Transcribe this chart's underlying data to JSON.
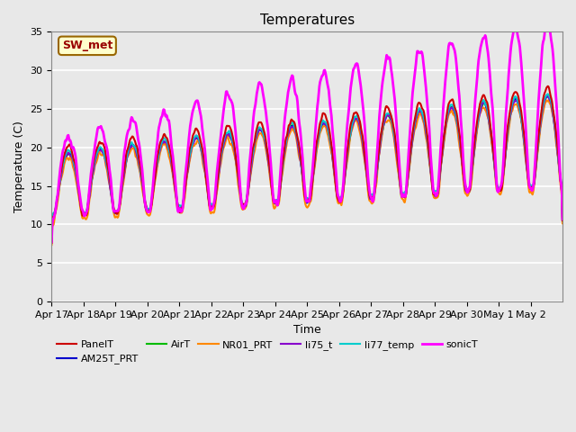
{
  "title": "Temperatures",
  "xlabel": "Time",
  "ylabel": "Temperature (C)",
  "ylim": [
    0,
    35
  ],
  "yticks": [
    0,
    5,
    10,
    15,
    20,
    25,
    30,
    35
  ],
  "n_days": 16,
  "xtick_labels": [
    "Apr 17",
    "Apr 18",
    "Apr 19",
    "Apr 20",
    "Apr 21",
    "Apr 22",
    "Apr 23",
    "Apr 24",
    "Apr 25",
    "Apr 26",
    "Apr 27",
    "Apr 28",
    "Apr 29",
    "Apr 30",
    "May 1",
    "May 2"
  ],
  "annotation_text": "SW_met",
  "annotation_bg": "#FFFFCC",
  "annotation_border": "#996600",
  "annotation_text_color": "#990000",
  "series": {
    "PanelT": {
      "color": "#CC0000",
      "lw": 1.5
    },
    "AM25T_PRT": {
      "color": "#0000CC",
      "lw": 1.5
    },
    "AirT": {
      "color": "#00BB00",
      "lw": 1.5
    },
    "NR01_PRT": {
      "color": "#FF8800",
      "lw": 1.5
    },
    "li75_t": {
      "color": "#8800CC",
      "lw": 1.5
    },
    "li77_temp": {
      "color": "#00CCCC",
      "lw": 1.5
    },
    "sonicT": {
      "color": "#FF00FF",
      "lw": 2.0
    }
  },
  "legend_order": [
    "PanelT",
    "AM25T_PRT",
    "AirT",
    "NR01_PRT",
    "li75_t",
    "li77_temp",
    "sonicT"
  ],
  "bg_color": "#E8E8E8"
}
